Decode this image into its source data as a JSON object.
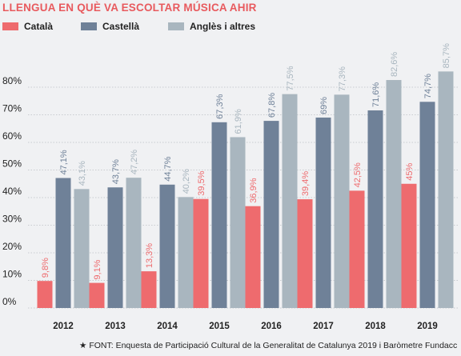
{
  "chart_data": {
    "type": "bar",
    "title": "LLENGUA EN QUÈ VA ESCOLTAR MÚSICA AHIR",
    "categories": [
      "2012",
      "2013",
      "2014",
      "2015",
      "2016",
      "2017",
      "2018",
      "2019"
    ],
    "series": [
      {
        "name": "Català",
        "color": "#ee6b6e",
        "values": [
          9.8,
          9.1,
          13.3,
          39.5,
          36.9,
          39.4,
          42.5,
          45
        ],
        "labels": [
          "9,8%",
          "9,1%",
          "13,3%",
          "39,5%",
          "36,9%",
          "39,4%",
          "42,5%",
          "45%"
        ]
      },
      {
        "name": "Castellà",
        "color": "#6f8198",
        "values": [
          47.1,
          43.7,
          44.7,
          67.3,
          67.8,
          69,
          71.6,
          74.7
        ],
        "labels": [
          "47,1%",
          "43,7%",
          "44,7%",
          "67,3%",
          "67,8%",
          "69%",
          "71,6%",
          "74,7%"
        ]
      },
      {
        "name": "Anglès i altres",
        "color": "#a9b6bf",
        "values": [
          43.1,
          47.2,
          40.2,
          61.9,
          77.5,
          77.3,
          82.6,
          85.7
        ],
        "labels": [
          "43,1%",
          "47,2%",
          "40,2%",
          "61,9%",
          "77,5%",
          "77,3%",
          "82,6%",
          "85,7%"
        ]
      }
    ],
    "yticks": [
      "0%",
      "10%",
      "20%",
      "30%",
      "40%",
      "50%",
      "60%",
      "70%",
      "80%"
    ],
    "ylim": [
      0,
      90
    ],
    "grid": true,
    "legend_position": "top-left",
    "xlabel": "",
    "ylabel": ""
  },
  "footnote": "★ FONT: Enquesta de Participació Cultural de la Generalitat de Catalunya 2019 i Baròmetre Fundacc"
}
